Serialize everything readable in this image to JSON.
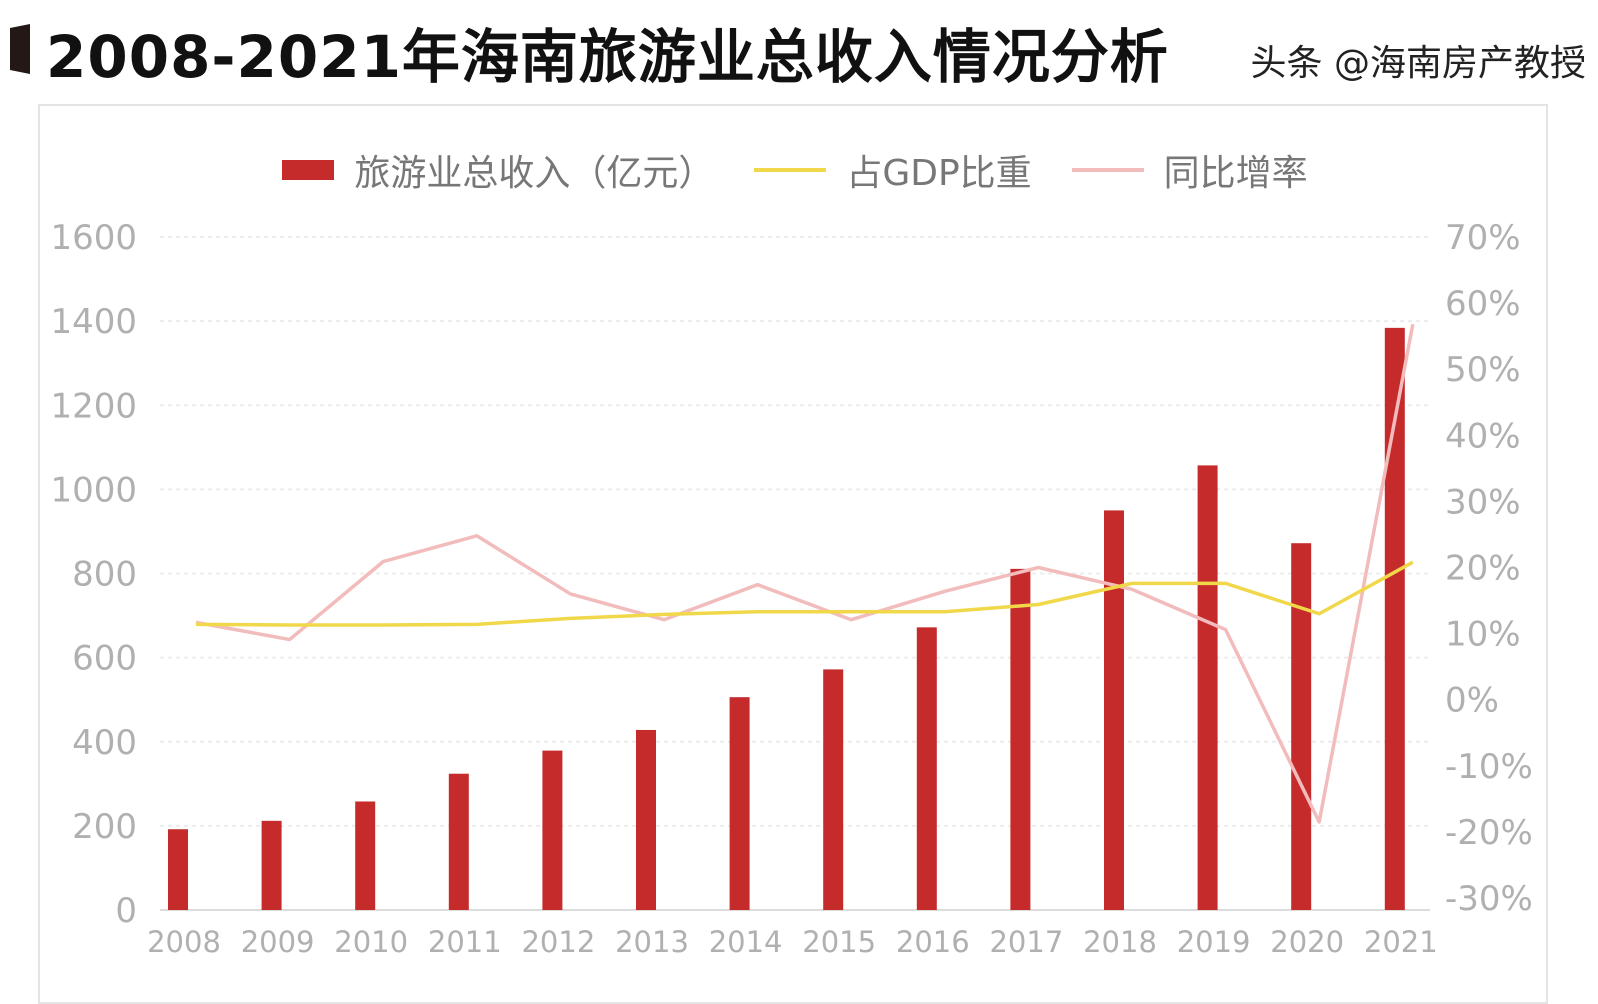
{
  "title": "2008-2021年海南旅游业总收入情况分析",
  "watermark": "头条 @海南房产教授",
  "chart_data": {
    "type": "bar+line",
    "title": "2008-2021年海南旅游业总收入情况分析",
    "categories": [
      "2008",
      "2009",
      "2010",
      "2011",
      "2012",
      "2013",
      "2014",
      "2015",
      "2016",
      "2017",
      "2018",
      "2019",
      "2020",
      "2021"
    ],
    "series": [
      {
        "name": "旅游业总收入（亿元）",
        "type": "bar",
        "axis": "left",
        "color": "#c62b2b",
        "values": [
          192,
          212,
          258,
          324,
          379,
          428,
          506,
          572,
          672,
          811,
          950,
          1057,
          872,
          1384
        ]
      },
      {
        "name": "占GDP比重",
        "type": "line",
        "axis": "right",
        "color": "#f0d84a",
        "values": [
          11.4,
          11.3,
          11.3,
          11.4,
          12.3,
          12.9,
          13.3,
          13.3,
          13.3,
          14.4,
          17.6,
          17.6,
          13.0,
          20.8
        ]
      },
      {
        "name": "同比增率",
        "type": "line",
        "axis": "right",
        "color": "#f2bcbc",
        "values": [
          11.7,
          9.1,
          20.9,
          24.8,
          16.0,
          12.1,
          17.4,
          12.1,
          16.4,
          20.0,
          16.7,
          10.6,
          -18.5,
          56.8
        ]
      }
    ],
    "y_left": {
      "range": [
        0,
        1600
      ],
      "ticks": [
        "0",
        "200",
        "400",
        "600",
        "800",
        "1000",
        "1200",
        "1400",
        "1600"
      ]
    },
    "y_right": {
      "range": [
        -30,
        70
      ],
      "ticks": [
        "-30%",
        "-20%",
        "-10%",
        "0%",
        "10%",
        "20%",
        "30%",
        "40%",
        "50%",
        "60%",
        "70%"
      ]
    },
    "grid": true,
    "legend": "top"
  }
}
